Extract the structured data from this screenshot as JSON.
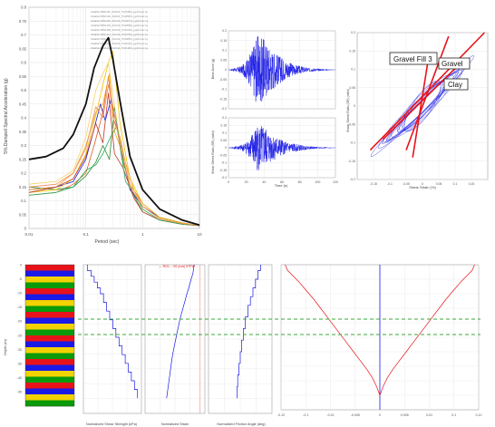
{
  "colors": {
    "grid": "#e4e4e4",
    "axis": "#8a8a8a",
    "trace": "#1a1ae6",
    "red": "#e8131a",
    "mean": "#111111",
    "dashed": "#3aa83a",
    "pink": "#f39a9a"
  },
  "chart_data": [
    {
      "id": "spectra",
      "type": "line",
      "xlabel": "Period (sec)",
      "ylabel": "5% Damped Spectral Acceleration (g)",
      "xscale": "log",
      "xlim": [
        0.01,
        10
      ],
      "ylim": [
        0,
        0.8
      ],
      "xticks": [
        "0.01",
        "0.1",
        "1",
        "10"
      ],
      "yticks": [
        "0",
        "0.05",
        "0.1",
        "0.15",
        "0.2",
        "0.25",
        "0.3",
        "0.35",
        "0.4",
        "0.45",
        "0.5",
        "0.55",
        "0.6",
        "0.65",
        "0.7",
        "0.75",
        "0.8"
      ],
      "legend_entries": [
        "Ghakhar RSN1187_CHICHI_TCU048-E_pgmh.tvec 1g",
        "Ghakhar RSN1194_CHICHI_TCU055-N_pgmh.tvec 1g",
        "Ghakhar RSN1202_CHICHI_TCU067-N_pgmh.tvec 1g",
        "Ghakhar RSN1203_CHICHI_TCU068-E_pgmh.tvec 1g",
        "Ghakhar RSN1208_CHICHI_TCU074-N_pgmh.tvec 1g",
        "Ghakhar RSN1213_CHICHI_TCU079-E_pgmh.tvec 1g",
        "Ghakhar RSN1219_CHICHI_TCU085-N_pgmh.tvec 1g",
        "Ghakhar RSN1231_CHICHI_TCU101-E_pgmh.tvec 1g",
        "Ghakhar RSN1244_CHICHI_TCU118-N_pgmh.tvec 1g"
      ],
      "series": [
        {
          "color": "#1a1ae6",
          "x": [
            0.01,
            0.03,
            0.06,
            0.1,
            0.14,
            0.18,
            0.22,
            0.28,
            0.4,
            0.6,
            1,
            2,
            5,
            10
          ],
          "y": [
            0.14,
            0.15,
            0.17,
            0.25,
            0.36,
            0.45,
            0.39,
            0.47,
            0.31,
            0.14,
            0.08,
            0.04,
            0.02,
            0.01
          ]
        },
        {
          "color": "#e05a1a",
          "x": [
            0.01,
            0.03,
            0.06,
            0.1,
            0.14,
            0.2,
            0.25,
            0.3,
            0.4,
            0.6,
            1,
            2,
            5,
            10
          ],
          "y": [
            0.12,
            0.13,
            0.16,
            0.2,
            0.3,
            0.42,
            0.55,
            0.4,
            0.33,
            0.16,
            0.09,
            0.04,
            0.02,
            0.01
          ]
        },
        {
          "color": "#2e8b2e",
          "x": [
            0.01,
            0.03,
            0.06,
            0.1,
            0.15,
            0.2,
            0.26,
            0.32,
            0.45,
            0.7,
            1,
            2,
            5,
            10
          ],
          "y": [
            0.15,
            0.14,
            0.15,
            0.19,
            0.24,
            0.3,
            0.25,
            0.44,
            0.24,
            0.12,
            0.06,
            0.03,
            0.015,
            0.01
          ]
        },
        {
          "color": "#f2c200",
          "x": [
            0.01,
            0.03,
            0.06,
            0.1,
            0.15,
            0.2,
            0.25,
            0.3,
            0.4,
            0.6,
            1,
            2,
            5,
            10
          ],
          "y": [
            0.13,
            0.14,
            0.18,
            0.27,
            0.41,
            0.52,
            0.6,
            0.64,
            0.38,
            0.18,
            0.09,
            0.04,
            0.02,
            0.01
          ]
        },
        {
          "color": "#f5a623",
          "x": [
            0.01,
            0.03,
            0.06,
            0.1,
            0.15,
            0.2,
            0.26,
            0.32,
            0.45,
            0.7,
            1,
            2,
            5,
            10
          ],
          "y": [
            0.14,
            0.15,
            0.2,
            0.3,
            0.42,
            0.45,
            0.56,
            0.35,
            0.27,
            0.14,
            0.07,
            0.03,
            0.015,
            0.01
          ]
        },
        {
          "color": "#f7d36b",
          "x": [
            0.01,
            0.03,
            0.06,
            0.1,
            0.15,
            0.2,
            0.25,
            0.3,
            0.4,
            0.6,
            1,
            2,
            5,
            10
          ],
          "y": [
            0.16,
            0.17,
            0.21,
            0.33,
            0.5,
            0.56,
            0.6,
            0.48,
            0.32,
            0.16,
            0.08,
            0.035,
            0.018,
            0.01
          ]
        },
        {
          "color": "#c0392b",
          "x": [
            0.01,
            0.03,
            0.06,
            0.1,
            0.15,
            0.2,
            0.25,
            0.32,
            0.45,
            0.7,
            1,
            2,
            5,
            10
          ],
          "y": [
            0.13,
            0.15,
            0.18,
            0.26,
            0.38,
            0.31,
            0.49,
            0.27,
            0.22,
            0.11,
            0.06,
            0.03,
            0.015,
            0.01
          ]
        },
        {
          "color": "#27ae60",
          "x": [
            0.01,
            0.03,
            0.06,
            0.1,
            0.15,
            0.2,
            0.27,
            0.35,
            0.5,
            0.8,
            1,
            2,
            5,
            10
          ],
          "y": [
            0.12,
            0.13,
            0.15,
            0.21,
            0.23,
            0.27,
            0.33,
            0.37,
            0.17,
            0.11,
            0.07,
            0.03,
            0.015,
            0.01
          ]
        },
        {
          "color": "#f08a5d",
          "x": [
            0.01,
            0.03,
            0.06,
            0.1,
            0.15,
            0.2,
            0.25,
            0.3,
            0.4,
            0.6,
            1,
            2,
            5,
            10
          ],
          "y": [
            0.15,
            0.16,
            0.2,
            0.29,
            0.44,
            0.4,
            0.52,
            0.44,
            0.3,
            0.15,
            0.08,
            0.035,
            0.018,
            0.01
          ]
        },
        {
          "color": "#111111",
          "width": 1.8,
          "x": [
            0.01,
            0.02,
            0.04,
            0.06,
            0.1,
            0.14,
            0.2,
            0.25,
            0.3,
            0.4,
            0.6,
            1,
            2,
            5,
            10
          ],
          "y": [
            0.25,
            0.26,
            0.29,
            0.34,
            0.45,
            0.58,
            0.66,
            0.69,
            0.61,
            0.46,
            0.26,
            0.14,
            0.07,
            0.03,
            0.012
          ]
        }
      ]
    },
    {
      "id": "accel",
      "type": "line",
      "ylabel": "Base Accel (g)",
      "xlim": [
        0,
        120
      ],
      "ylim": [
        -0.2,
        0.2
      ],
      "yticks": [
        "0.2",
        "0.15",
        "0.1",
        "0.05",
        "0",
        "-0.05",
        "-0.1",
        "-0.15",
        "-0.2"
      ],
      "envelope": {
        "x": [
          0,
          15,
          22,
          27,
          32,
          40,
          46,
          52,
          58,
          64,
          72,
          80,
          90,
          120
        ],
        "amp": [
          0,
          0.02,
          0.06,
          0.12,
          0.18,
          0.16,
          0.12,
          0.09,
          0.07,
          0.05,
          0.03,
          0.02,
          0.01,
          0.0
        ]
      }
    },
    {
      "id": "stress",
      "type": "line",
      "ylabel": "Shear Stress Ratio (SR) (ratio)",
      "xlabel": "Time (s)",
      "xlim": [
        0,
        120
      ],
      "xticks": [
        "0",
        "20",
        "40",
        "60",
        "80",
        "100",
        "120"
      ],
      "ylim": [
        -0.2,
        0.2
      ],
      "yticks": [
        "0.2",
        "0.15",
        "0.1",
        "0.05",
        "0",
        "-0.05",
        "-0.1",
        "-0.15",
        "-0.2"
      ],
      "envelope": {
        "x": [
          0,
          15,
          22,
          27,
          32,
          40,
          46,
          52,
          58,
          64,
          72,
          80,
          90,
          120
        ],
        "amp": [
          0,
          0.02,
          0.05,
          0.1,
          0.16,
          0.14,
          0.1,
          0.08,
          0.06,
          0.04,
          0.03,
          0.02,
          0.01,
          0.0
        ]
      }
    },
    {
      "id": "hysteresis",
      "type": "line",
      "xlabel": "Shear Strain (%)",
      "ylabel": "Shear Stress Ratio (SR) (ratio)",
      "xlim": [
        -0.2,
        0.2
      ],
      "xticks": [
        "-0.15",
        "-0.1",
        "-0.05",
        "0",
        "0.05",
        "0.1",
        "0.15"
      ],
      "ylim": [
        -0.2,
        0.2
      ],
      "yticks": [
        "0.2",
        "0.15",
        "0.1",
        "0.05",
        "0",
        "-0.05",
        "-0.1",
        "-0.15",
        "-0.2"
      ],
      "annotations": [
        "Gravel Fill 3",
        "Gravel",
        "Clay"
      ],
      "backbones": [
        {
          "x": [
            -0.16,
            0.19
          ],
          "y": [
            -0.12,
            0.2
          ]
        },
        {
          "x": [
            -0.05,
            0.08
          ],
          "y": [
            -0.12,
            0.19
          ]
        },
        {
          "x": [
            -0.03,
            0.02
          ],
          "y": [
            -0.14,
            0.14
          ]
        },
        {
          "x": [
            -0.12,
            0.12
          ],
          "y": [
            -0.09,
            0.12
          ]
        }
      ]
    },
    {
      "id": "profile",
      "type": "bar",
      "ylabel": "Depth (m)",
      "ylim": [
        -50,
        0
      ],
      "yticks": [
        "0",
        "-5",
        "-10",
        "-15",
        "-20",
        "-25",
        "-30",
        "-35",
        "-40",
        "-45"
      ],
      "layer_colors": [
        "#e8131a",
        "#1a1ae6",
        "#f2d200",
        "#0a9a0a"
      ],
      "layer_count": 24
    },
    {
      "id": "vs",
      "type": "line",
      "xlabel": "Normalized Shear Strength (kPa)",
      "depth": [
        0,
        -2,
        -2,
        -4,
        -4,
        -6,
        -6,
        -8,
        -8,
        -10,
        -10,
        -13,
        -13,
        -16,
        -16,
        -19,
        -19,
        -22,
        -22,
        -25,
        -25,
        -28,
        -28,
        -31,
        -31,
        -34,
        -34,
        -37,
        -37,
        -40,
        -40,
        -43,
        -43,
        -46
      ],
      "value": [
        0.05,
        0.05,
        0.1,
        0.1,
        0.14,
        0.14,
        0.18,
        0.18,
        0.22,
        0.22,
        0.26,
        0.26,
        0.3,
        0.3,
        0.34,
        0.34,
        0.38,
        0.38,
        0.42,
        0.42,
        0.46,
        0.46,
        0.5,
        0.5,
        0.54,
        0.54,
        0.58,
        0.58,
        0.62,
        0.62,
        0.66,
        0.66,
        0.7,
        0.7
      ]
    },
    {
      "id": "strain",
      "type": "line",
      "xlabel": "Normalized Strain",
      "title": "— RG1 – VS (m/s) 6TFW",
      "depth": [
        0,
        -3,
        -5,
        -8,
        -10,
        -13,
        -16,
        -19,
        -22,
        -25,
        -28,
        -31,
        -34,
        -37,
        -40,
        -43,
        -46
      ],
      "value": [
        0.82,
        0.8,
        0.77,
        0.73,
        0.7,
        0.66,
        0.62,
        0.58,
        0.55,
        0.52,
        0.49,
        0.46,
        0.44,
        0.42,
        0.4,
        0.38,
        0.36
      ]
    },
    {
      "id": "friction",
      "type": "line",
      "xlabel": "Normalized Friction Angle (deg)",
      "depth": [
        0,
        -2,
        -2,
        -5,
        -5,
        -8,
        -8,
        -11,
        -11,
        -14,
        -14,
        -18,
        -18,
        -22,
        -22,
        -26,
        -26,
        -30,
        -30,
        -34,
        -34,
        -38,
        -38,
        -42,
        -42,
        -46
      ],
      "value": [
        0.82,
        0.82,
        0.78,
        0.78,
        0.74,
        0.74,
        0.7,
        0.7,
        0.66,
        0.66,
        0.62,
        0.62,
        0.58,
        0.58,
        0.55,
        0.55,
        0.52,
        0.52,
        0.5,
        0.5,
        0.48,
        0.48,
        0.46,
        0.46,
        0.45,
        0.45
      ]
    },
    {
      "id": "disp",
      "type": "line",
      "xlim": [
        -0.12,
        0.12
      ],
      "xticks": [
        "-0.12",
        "-0.1",
        "-0.01",
        "-0.005",
        "0",
        "0.005",
        "0.01",
        "0.1",
        "0.12"
      ],
      "depth": [
        0,
        -2,
        -4,
        -6,
        -8,
        -10,
        -12,
        -15,
        -18,
        -21,
        -24,
        -27,
        -30,
        -33,
        -36,
        -39,
        -42,
        -45
      ],
      "left": [
        -0.115,
        -0.112,
        -0.105,
        -0.098,
        -0.092,
        -0.086,
        -0.08,
        -0.072,
        -0.064,
        -0.056,
        -0.048,
        -0.04,
        -0.032,
        -0.024,
        -0.016,
        -0.009,
        -0.004,
        0
      ],
      "right": [
        0.115,
        0.112,
        0.105,
        0.098,
        0.092,
        0.086,
        0.08,
        0.072,
        0.064,
        0.056,
        0.048,
        0.04,
        0.032,
        0.024,
        0.016,
        0.009,
        0.004,
        0
      ]
    }
  ]
}
